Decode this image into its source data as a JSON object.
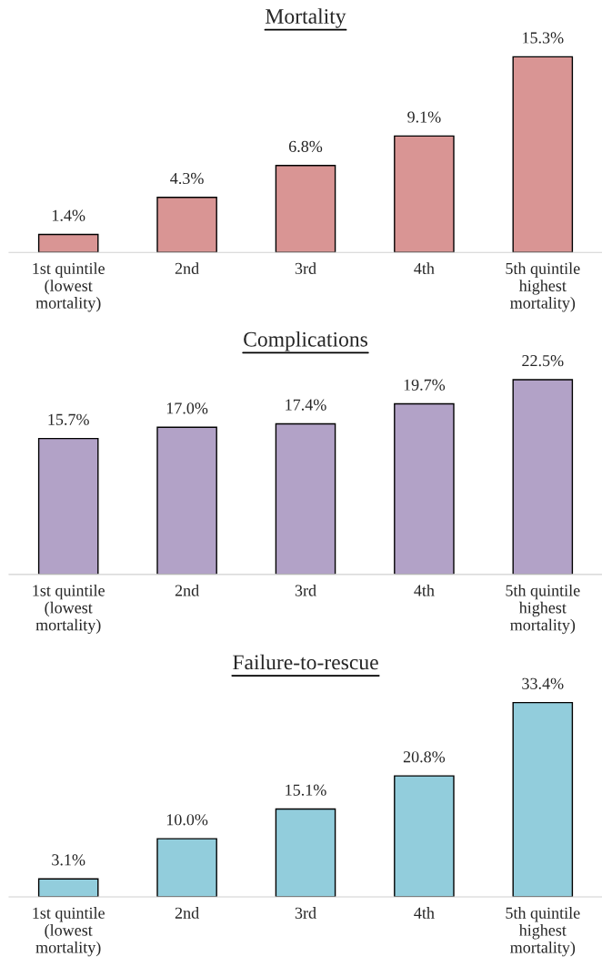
{
  "chart_data": [
    {
      "type": "bar",
      "title": "Mortality",
      "categories": [
        "1st quintile\n(lowest\nmortality)",
        "2nd",
        "3rd",
        "4th",
        "5th quintile\nhighest\nmortality)"
      ],
      "values": [
        1.4,
        4.3,
        6.8,
        9.1,
        15.3
      ],
      "value_labels": [
        "1.4%",
        "4.3%",
        "6.8%",
        "9.1%",
        "15.3%"
      ],
      "color": "#d99594",
      "grid": false,
      "legend": false,
      "tick_labels": "x"
    },
    {
      "type": "bar",
      "title": "Complications",
      "categories": [
        "1st quintile\n(lowest\nmortality)",
        "2nd",
        "3rd",
        "4th",
        "5th quintile\nhighest\nmortality)"
      ],
      "values": [
        15.7,
        17.0,
        17.4,
        19.7,
        22.5
      ],
      "value_labels": [
        "15.7%",
        "17.0%",
        "17.4%",
        "19.7%",
        "22.5%"
      ],
      "color": "#b2a2c7",
      "grid": false,
      "legend": false,
      "tick_labels": "x"
    },
    {
      "type": "bar",
      "title": "Failure-to-rescue",
      "categories": [
        "1st quintile\n(lowest\nmortality)",
        "2nd",
        "3rd",
        "4th",
        "5th quintile\nhighest\nmortality)"
      ],
      "values": [
        3.1,
        10.0,
        15.1,
        20.8,
        33.4
      ],
      "value_labels": [
        "3.1%",
        "10.0%",
        "15.1%",
        "20.8%",
        "33.4%"
      ],
      "color": "#92cddc",
      "grid": false,
      "legend": false,
      "tick_labels": "x"
    }
  ]
}
